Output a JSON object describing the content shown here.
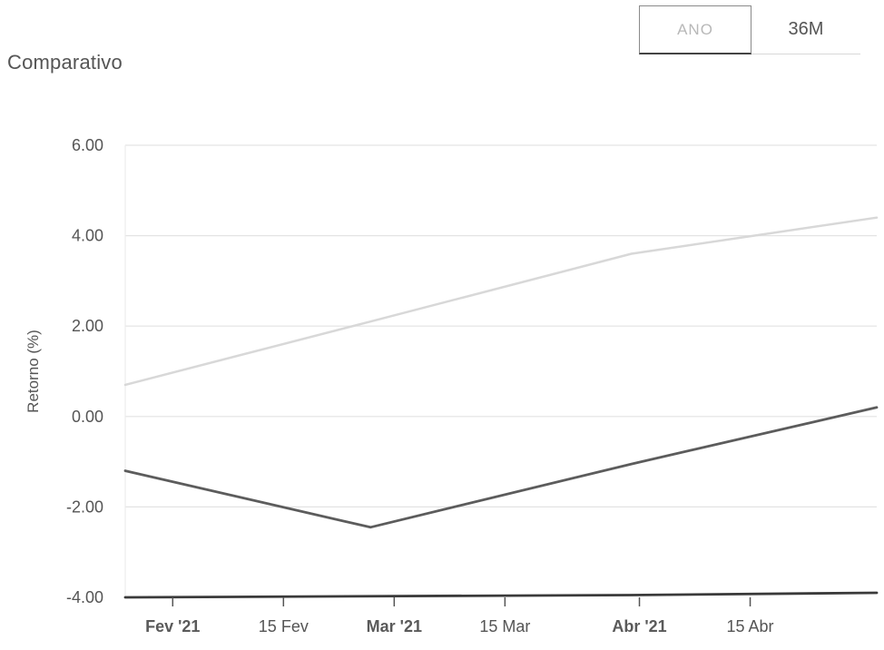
{
  "heading": "Comparativo",
  "range_buttons": [
    {
      "label": "ANO",
      "active": true
    },
    {
      "label": "36M",
      "active": false
    }
  ],
  "chart_data": {
    "type": "line",
    "title": "",
    "xlabel": "",
    "ylabel": "Retorno (%)",
    "ylim": [
      -4,
      6
    ],
    "y_ticks": [
      -4,
      -2,
      0,
      2,
      4,
      6
    ],
    "y_tick_labels": [
      "-4.00",
      "-2.00",
      "0.00",
      "2.00",
      "4.00",
      "6.00"
    ],
    "xlim": [
      "2021-01-26",
      "2021-05-01"
    ],
    "x_ticks": [
      {
        "date": "2021-02-01",
        "label": "Fev '21",
        "major": true
      },
      {
        "date": "2021-02-15",
        "label": "15 Fev",
        "major": false
      },
      {
        "date": "2021-03-01",
        "label": "Mar '21",
        "major": true
      },
      {
        "date": "2021-03-15",
        "label": "15 Mar",
        "major": false
      },
      {
        "date": "2021-04-01",
        "label": "Abr '21",
        "major": true
      },
      {
        "date": "2021-04-15",
        "label": "15 Abr",
        "major": false
      }
    ],
    "grid": true,
    "legend": "none",
    "series": [
      {
        "color": "#d8d8d8",
        "x": [
          "2021-01-26",
          "2021-02-26",
          "2021-03-31",
          "2021-05-01"
        ],
        "values": [
          0.7,
          2.1,
          3.6,
          4.4
        ]
      },
      {
        "color": "#5c5c5c",
        "x": [
          "2021-01-26",
          "2021-02-26",
          "2021-03-31",
          "2021-05-01"
        ],
        "values": [
          -1.2,
          -2.45,
          -1.05,
          0.2
        ]
      },
      {
        "color": "#3a3a3a",
        "x": [
          "2021-01-26",
          "2021-03-31",
          "2021-05-01"
        ],
        "values": [
          -4.0,
          -3.95,
          -3.9
        ]
      }
    ]
  }
}
